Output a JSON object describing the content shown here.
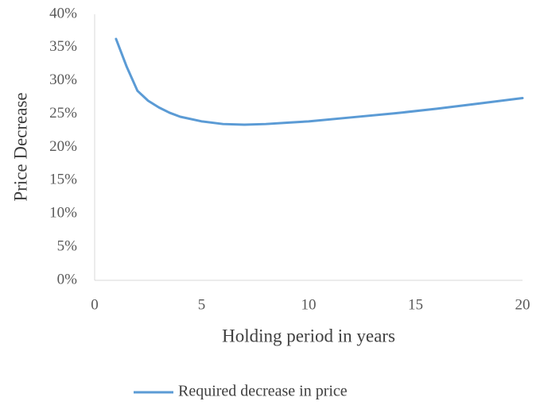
{
  "chart_data": {
    "type": "line",
    "x_label": "Holding period in years",
    "y_label": "Price Decrease",
    "x": [
      1,
      1.5,
      2,
      2.5,
      3,
      3.5,
      4,
      5,
      6,
      7,
      8,
      9,
      10,
      12,
      14,
      16,
      18,
      20
    ],
    "series": [
      {
        "name": "Required decrease in price",
        "color": "#5b9bd5",
        "values": [
          36.3,
          32.1,
          28.5,
          27.0,
          26.0,
          25.2,
          24.6,
          23.9,
          23.5,
          23.4,
          23.5,
          23.7,
          23.9,
          24.5,
          25.1,
          25.8,
          26.6,
          27.4
        ]
      }
    ],
    "xlim": [
      0,
      20
    ],
    "xticks": [
      0,
      5,
      10,
      15,
      20
    ],
    "ylim": [
      0,
      40
    ],
    "yticks": [
      {
        "value": 0,
        "label": "0%"
      },
      {
        "value": 5,
        "label": "5%"
      },
      {
        "value": 10,
        "label": "10%"
      },
      {
        "value": 15,
        "label": "15%"
      },
      {
        "value": 20,
        "label": "20%"
      },
      {
        "value": 25,
        "label": "25%"
      },
      {
        "value": 30,
        "label": "30%"
      },
      {
        "value": 35,
        "label": "35%"
      },
      {
        "value": 40,
        "label": "40%"
      }
    ],
    "grid": false,
    "legend": "bottom"
  }
}
